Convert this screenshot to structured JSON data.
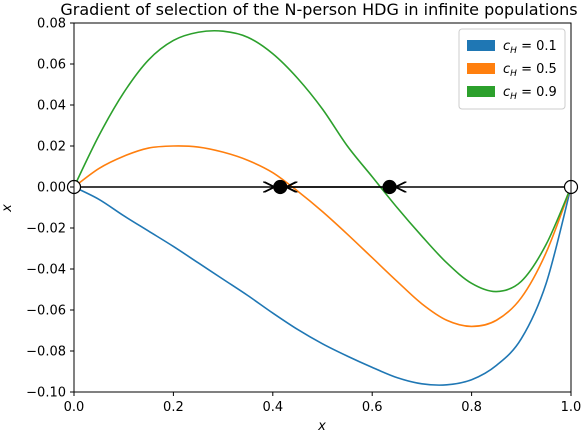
{
  "chart_data": {
    "type": "line",
    "title": "Gradient of selection of the N-person HDG in infinite populations",
    "xlabel": "x",
    "ylabel": "x",
    "xlim": [
      0.0,
      1.0
    ],
    "ylim": [
      -0.1,
      0.08
    ],
    "x_ticks": [
      "0.0",
      "0.2",
      "0.4",
      "0.6",
      "0.8",
      "1.0"
    ],
    "y_ticks": [
      "−0.10",
      "−0.08",
      "−0.06",
      "−0.04",
      "−0.02",
      "0.00",
      "0.02",
      "0.04",
      "0.06",
      "0.08"
    ],
    "grid": false,
    "legend_position": "top-right",
    "x": [
      0.0,
      0.05,
      0.1,
      0.15,
      0.2,
      0.25,
      0.3,
      0.35,
      0.4,
      0.45,
      0.5,
      0.55,
      0.6,
      0.65,
      0.7,
      0.75,
      0.8,
      0.85,
      0.9,
      0.95,
      1.0
    ],
    "series": [
      {
        "name": "c_H = 0.1",
        "label_prefix": "c",
        "label_sub": "H",
        "label_suffix": " = 0.1",
        "color": "#1f77b4",
        "values": [
          0.0,
          -0.006,
          -0.014,
          -0.0215,
          -0.029,
          -0.037,
          -0.045,
          -0.053,
          -0.0615,
          -0.0695,
          -0.0765,
          -0.0825,
          -0.088,
          -0.093,
          -0.096,
          -0.0965,
          -0.094,
          -0.087,
          -0.074,
          -0.047,
          0.0
        ]
      },
      {
        "name": "c_H = 0.5",
        "label_prefix": "c",
        "label_sub": "H",
        "label_suffix": " = 0.5",
        "color": "#ff7f0e",
        "values": [
          0.0,
          0.009,
          0.015,
          0.019,
          0.02,
          0.0195,
          0.017,
          0.013,
          0.007,
          -0.002,
          -0.012,
          -0.023,
          -0.0345,
          -0.046,
          -0.057,
          -0.065,
          -0.068,
          -0.065,
          -0.054,
          -0.032,
          0.0
        ]
      },
      {
        "name": "c_H = 0.9",
        "label_prefix": "c",
        "label_sub": "H",
        "label_suffix": " = 0.9",
        "color": "#2ca02c",
        "values": [
          0.0,
          0.025,
          0.046,
          0.062,
          0.0715,
          0.0755,
          0.076,
          0.073,
          0.065,
          0.053,
          0.038,
          0.02,
          0.005,
          -0.01,
          -0.024,
          -0.037,
          -0.047,
          -0.051,
          -0.046,
          -0.028,
          0.0
        ]
      }
    ],
    "fixed_points": [
      {
        "x": 0.0,
        "y": 0.0,
        "stability": "unstable"
      },
      {
        "x": 0.415,
        "y": 0.0,
        "stability": "stable"
      },
      {
        "x": 0.635,
        "y": 0.0,
        "stability": "stable"
      },
      {
        "x": 1.0,
        "y": 0.0,
        "stability": "unstable"
      }
    ],
    "flow_arrows": [
      {
        "x_from": 0.0,
        "x_to": 0.415
      },
      {
        "x_from": 0.635,
        "x_to": 0.415
      },
      {
        "x_from": 0.635,
        "x_to": 0.415,
        "end": "to"
      },
      {
        "x_from": 1.0,
        "x_to": 0.635
      }
    ]
  }
}
